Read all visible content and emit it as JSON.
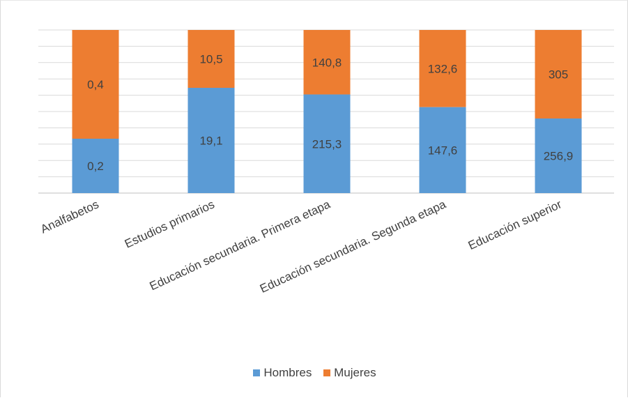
{
  "chart_data": {
    "type": "bar",
    "stacked": true,
    "percent_stacked": true,
    "categories": [
      "Analfabetos",
      "Estudios primarios",
      "Educación secundaria. Primera etapa",
      "Educación secundaria. Segunda etapa",
      "Educación superior"
    ],
    "series": [
      {
        "name": "Hombres",
        "color": "#5b9bd5",
        "values": [
          0.2,
          19.1,
          215.3,
          147.6,
          256.9
        ],
        "labels": [
          "0,2",
          "19,1",
          "215,3",
          "147,6",
          "256,9"
        ]
      },
      {
        "name": "Mujeres",
        "color": "#ed7d31",
        "values": [
          0.4,
          10.5,
          140.8,
          132.6,
          305
        ],
        "labels": [
          "0,4",
          "10,5",
          "140,8",
          "132,6",
          "305"
        ]
      }
    ],
    "grid": true,
    "legend_position": "bottom"
  }
}
